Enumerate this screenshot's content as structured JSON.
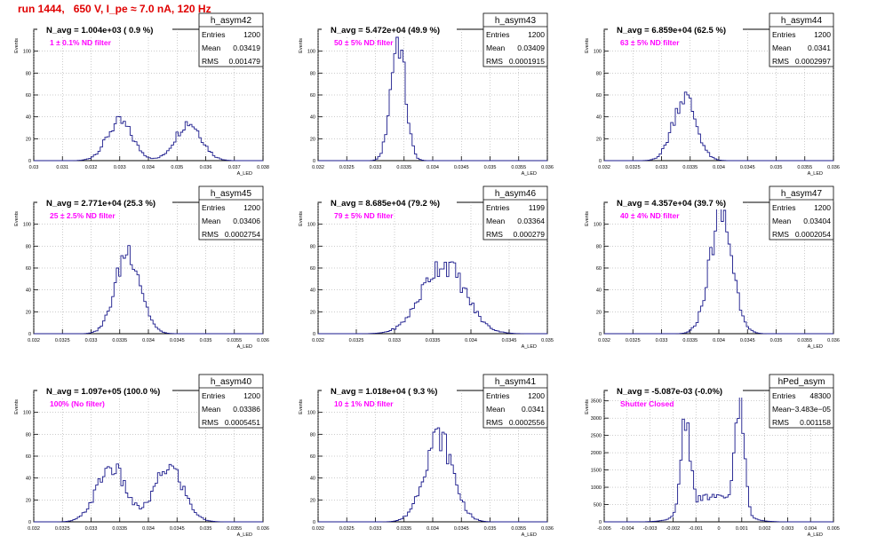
{
  "page": {
    "title": "run 1444,   650 V, I_pe ≈ 7.0 nA, 120 Hz",
    "colors": {
      "title": "#e00000",
      "histogram": "#1a1a8c",
      "annotation": "#ff00ff",
      "frame": "#000000"
    }
  },
  "chart_data": [
    {
      "type": "histogram",
      "name": "h_asym42",
      "title": "N_avg = 1.004e+03 ( 0.9 %)",
      "annotation": "1 ± 0.1% ND filter",
      "ylabel": "Events",
      "xlabel": "A_LED",
      "stats": [
        [
          "Entries",
          "1200"
        ],
        [
          "Mean",
          "0.03419"
        ],
        [
          "RMS",
          "0.001479"
        ]
      ],
      "xlim": [
        0.03,
        0.038
      ],
      "ylim": [
        0,
        120
      ],
      "xticks": [
        "0.03",
        "0.031",
        "0.032",
        "0.033",
        "0.034",
        "0.035",
        "0.036",
        "0.037",
        "0.038"
      ],
      "yticks": [
        "0",
        "20",
        "40",
        "60",
        "80",
        "100"
      ],
      "components": [
        {
          "mean": 0.033,
          "sigma": 0.00045,
          "weight": 0.5
        },
        {
          "mean": 0.0354,
          "sigma": 0.00045,
          "weight": 0.5
        }
      ],
      "peak": 35
    },
    {
      "type": "histogram",
      "name": "h_asym43",
      "title": "N_avg = 5.472e+04 (49.9 %)",
      "annotation": "50 ± 5% ND filter",
      "ylabel": "Events",
      "xlabel": "A_LED",
      "stats": [
        [
          "Entries",
          "1200"
        ],
        [
          "Mean",
          "0.03409"
        ],
        [
          "RMS",
          "0.0001915"
        ]
      ],
      "xlim": [
        0.032,
        0.038
      ],
      "ylim": [
        0,
        120
      ],
      "xticks": [
        "0.032",
        "0.0325",
        "0.033",
        "0.0335",
        "0.034",
        "0.0345",
        "0.035",
        "0.0355",
        "0.036"
      ],
      "yticks": [
        "0",
        "20",
        "40",
        "60",
        "80",
        "100"
      ],
      "components": [
        {
          "mean": 0.03409,
          "sigma": 0.00019,
          "weight": 1
        }
      ],
      "peak": 110
    },
    {
      "type": "histogram",
      "name": "h_asym44",
      "title": "N_avg = 6.859e+04 (62.5 %)",
      "annotation": "63 ± 5% ND filter",
      "ylabel": "Events",
      "xlabel": "A_LED",
      "stats": [
        [
          "Entries",
          "1200"
        ],
        [
          "Mean",
          "0.0341"
        ],
        [
          "RMS",
          "0.0002997"
        ]
      ],
      "xlim": [
        0.032,
        0.038
      ],
      "ylim": [
        0,
        120
      ],
      "xticks": [
        "0.032",
        "0.0325",
        "0.033",
        "0.0335",
        "0.034",
        "0.0345",
        "0.035",
        "0.0355",
        "0.036"
      ],
      "yticks": [
        "0",
        "20",
        "40",
        "60",
        "80",
        "100"
      ],
      "components": [
        {
          "mean": 0.0341,
          "sigma": 0.0003,
          "weight": 1
        }
      ],
      "peak": 58
    },
    {
      "type": "histogram",
      "name": "h_asym45",
      "title": "N_avg = 2.771e+04 (25.3 %)",
      "annotation": "25 ± 2.5% ND filter",
      "ylabel": "Events",
      "xlabel": "A_LED",
      "stats": [
        [
          "Entries",
          "1200"
        ],
        [
          "Mean",
          "0.03406"
        ],
        [
          "RMS",
          "0.0002754"
        ]
      ],
      "xlim": [
        0.032,
        0.037
      ],
      "ylim": [
        0,
        120
      ],
      "xticks": [
        "0.032",
        "0.0325",
        "0.033",
        "0.0335",
        "0.034",
        "0.0345",
        "0.035",
        "0.0355",
        "0.036"
      ],
      "yticks": [
        "0",
        "20",
        "40",
        "60",
        "80",
        "100"
      ],
      "components": [
        {
          "mean": 0.03406,
          "sigma": 0.00027,
          "weight": 1
        }
      ],
      "peak": 76
    },
    {
      "type": "histogram",
      "name": "h_asym46",
      "title": "N_avg = 8.685e+04 (79.2 %)",
      "annotation": "79 ± 5% ND filter",
      "ylabel": "Events",
      "xlabel": "A_LED",
      "stats": [
        [
          "Entries",
          "1199"
        ],
        [
          "Mean",
          "0.03364"
        ],
        [
          "RMS",
          "0.000279"
        ]
      ],
      "xlim": [
        0.032,
        0.035
      ],
      "ylim": [
        0,
        120
      ],
      "xticks": [
        "0.032",
        "0.0325",
        "0.033",
        "0.0335",
        "0.034",
        "0.0345",
        "0.035"
      ],
      "yticks": [
        "0",
        "20",
        "40",
        "60",
        "80",
        "100"
      ],
      "components": [
        {
          "mean": 0.03364,
          "sigma": 0.00028,
          "weight": 1
        }
      ],
      "peak": 64
    },
    {
      "type": "histogram",
      "name": "h_asym47",
      "title": "N_avg = 4.357e+04 (39.7 %)",
      "annotation": "40 ± 4% ND filter",
      "ylabel": "Events",
      "xlabel": "A_LED",
      "stats": [
        [
          "Entries",
          "1200"
        ],
        [
          "Mean",
          "0.03404"
        ],
        [
          "RMS",
          "0.0002054"
        ]
      ],
      "xlim": [
        0.032,
        0.036
      ],
      "ylim": [
        0,
        120
      ],
      "xticks": [
        "0.032",
        "0.0325",
        "0.033",
        "0.0335",
        "0.034",
        "0.0345",
        "0.035",
        "0.0355",
        "0.036"
      ],
      "yticks": [
        "0",
        "20",
        "40",
        "60",
        "80",
        "100"
      ],
      "components": [
        {
          "mean": 0.03404,
          "sigma": 0.0002,
          "weight": 1
        }
      ],
      "peak": 108
    },
    {
      "type": "histogram",
      "name": "h_asym40",
      "title": "N_avg = 1.097e+05 (100.0 %)",
      "annotation": "100% (No filter)",
      "ylabel": "Events",
      "xlabel": "A_LED",
      "stats": [
        [
          "Entries",
          "1200"
        ],
        [
          "Mean",
          "0.03386"
        ],
        [
          "RMS",
          "0.0005451"
        ]
      ],
      "xlim": [
        0.032,
        0.036
      ],
      "ylim": [
        0,
        120
      ],
      "xticks": [
        "0.032",
        "0.0325",
        "0.033",
        "0.0335",
        "0.034",
        "0.0345",
        "0.035",
        "0.0355",
        "0.036"
      ],
      "yticks": [
        "0",
        "20",
        "40",
        "60",
        "80",
        "100"
      ],
      "components": [
        {
          "mean": 0.03335,
          "sigma": 0.00025,
          "weight": 0.5
        },
        {
          "mean": 0.03436,
          "sigma": 0.00025,
          "weight": 0.5
        }
      ],
      "peak": 50
    },
    {
      "type": "histogram",
      "name": "h_asym41",
      "title": "N_avg = 1.018e+04 ( 9.3 %)",
      "annotation": "10 ± 1% ND filter",
      "ylabel": "Events",
      "xlabel": "A_LED",
      "stats": [
        [
          "Entries",
          "1200"
        ],
        [
          "Mean",
          "0.0341"
        ],
        [
          "RMS",
          "0.0002556"
        ]
      ],
      "xlim": [
        0.032,
        0.036
      ],
      "ylim": [
        0,
        120
      ],
      "xticks": [
        "0.032",
        "0.0325",
        "0.033",
        "0.0335",
        "0.034",
        "0.0345",
        "0.035",
        "0.0355",
        "0.036"
      ],
      "yticks": [
        "0",
        "20",
        "40",
        "60",
        "80",
        "100"
      ],
      "components": [
        {
          "mean": 0.0341,
          "sigma": 0.00025,
          "weight": 1
        }
      ],
      "peak": 78
    },
    {
      "type": "histogram",
      "name": "hPed_asym",
      "title": "N_avg = -5.087e-03 (-0.0%)",
      "annotation": "Shutter Closed",
      "ylabel": "Events",
      "xlabel": "A_LED",
      "stats": [
        [
          "Entries",
          "48300"
        ],
        [
          "Mean",
          "−3.483e−05"
        ],
        [
          "RMS",
          "0.001158"
        ]
      ],
      "xlim": [
        -0.005,
        0.005
      ],
      "ylim": [
        0,
        3800
      ],
      "xticks": [
        "-0.005",
        "-0.004",
        "-0.003",
        "-0.002",
        "-0.001",
        "0",
        "0.001",
        "0.002",
        "0.003",
        "0.004",
        "0.005"
      ],
      "yticks": [
        "0",
        "500",
        "1000",
        "1500",
        "2000",
        "2500",
        "3000",
        "3500"
      ],
      "components": [
        {
          "mean": -0.00145,
          "sigma": 0.0002,
          "weight": 0.45
        },
        {
          "mean": 0.0009,
          "sigma": 0.0002,
          "weight": 0.55
        },
        {
          "mean": -0.0003,
          "sigma": 0.0009,
          "weight": 0.12
        }
      ],
      "peak": 3600
    }
  ]
}
